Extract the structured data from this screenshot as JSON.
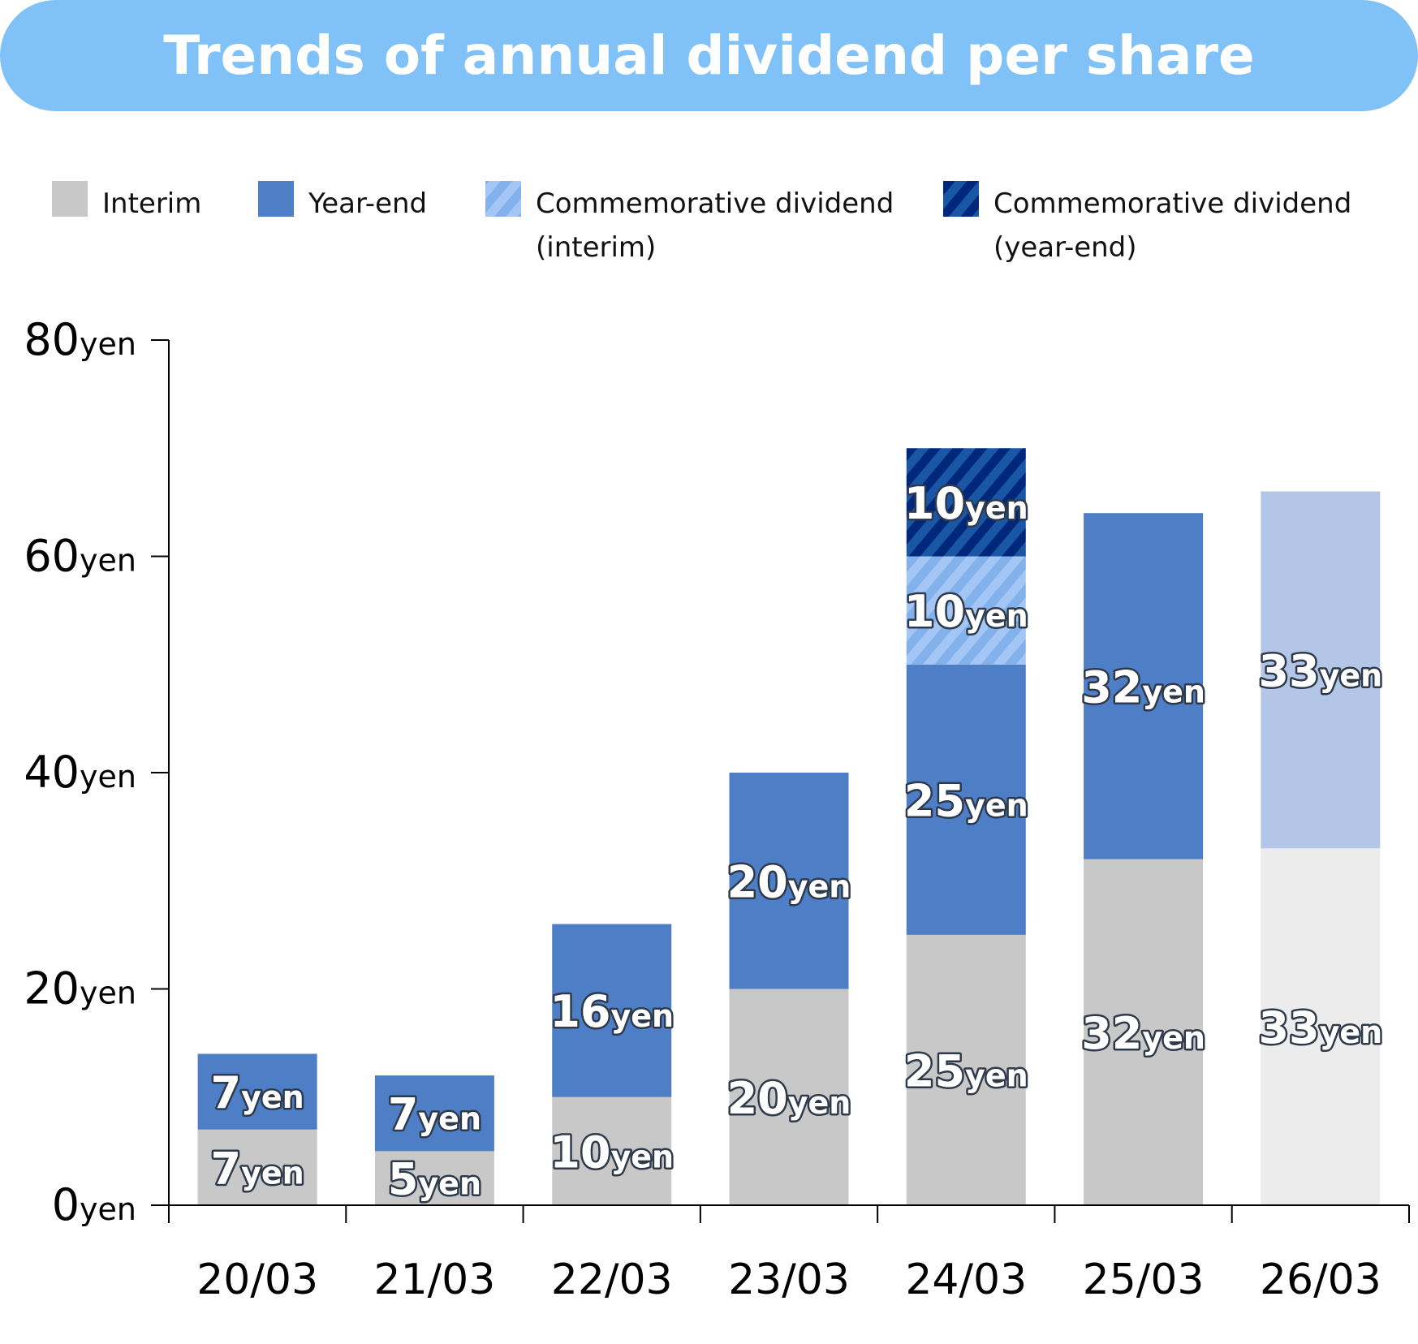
{
  "chart_data": {
    "type": "bar",
    "stacked": true,
    "title": "Trends of annual dividend per share",
    "categories": [
      "20/03",
      "21/03",
      "22/03",
      "23/03",
      "24/03",
      "25/03",
      "26/03"
    ],
    "unit": "yen",
    "ylim": [
      0,
      80
    ],
    "yticks": [
      0,
      20,
      40,
      60,
      80
    ],
    "grid": false,
    "legend_position": "top",
    "legend": [
      {
        "label": "Interim",
        "key": "interim"
      },
      {
        "label": "Year-end",
        "key": "year_end"
      },
      {
        "label": "Commemorative dividend",
        "label2": "(interim)",
        "key": "commem_interim"
      },
      {
        "label": "Commemorative dividend",
        "label2": "(year-end)",
        "key": "commem_year_end"
      }
    ],
    "series": [
      {
        "name": "Interim",
        "key": "interim",
        "values": [
          7,
          5,
          10,
          20,
          25,
          32,
          33
        ]
      },
      {
        "name": "Year-end",
        "key": "year_end",
        "values": [
          7,
          7,
          16,
          20,
          25,
          32,
          33
        ]
      },
      {
        "name": "Commemorative dividend (interim)",
        "key": "commem_interim",
        "values": [
          0,
          0,
          0,
          0,
          10,
          0,
          0
        ]
      },
      {
        "name": "Commemorative dividend (year-end)",
        "key": "commem_year_end",
        "values": [
          0,
          0,
          0,
          0,
          10,
          0,
          0
        ]
      }
    ],
    "forecast_categories": [
      "26/03"
    ],
    "colors": {
      "interim": "#c8c8c8",
      "year_end": "#4e7ec6",
      "commem_interim": [
        "#82b1ec",
        "#a3c6f5"
      ],
      "commem_year_end": [
        "#00287a",
        "#1a56a6"
      ],
      "forecast_interim": "#ececec",
      "forecast_year_end": "#b3c6e7",
      "banner": "#80c1f8"
    }
  }
}
